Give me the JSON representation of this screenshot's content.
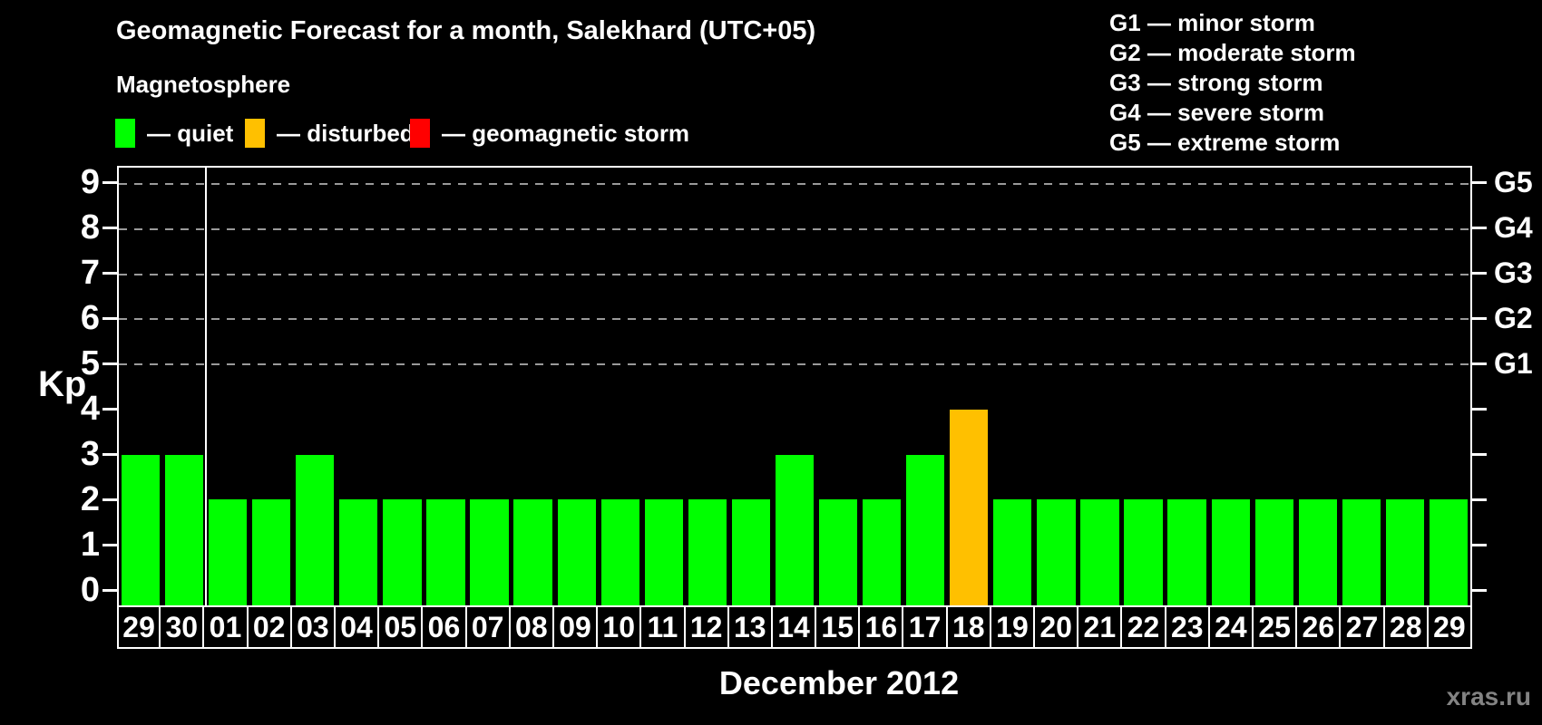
{
  "title": "Geomagnetic Forecast for a month, Salekhard (UTC+05)",
  "subtitle": "Magnetosphere",
  "legend": {
    "items": [
      {
        "key": "quiet",
        "label": "— quiet",
        "color": "#00ff00"
      },
      {
        "key": "disturbed",
        "label": "— disturbed",
        "color": "#ffc000"
      },
      {
        "key": "storm",
        "label": "— geomagnetic storm",
        "color": "#ff0000"
      }
    ]
  },
  "g_legend": [
    "G1 — minor storm",
    "G2 — moderate storm",
    "G3 — strong storm",
    "G4 — severe storm",
    "G5 — extreme storm"
  ],
  "watermark": "xras.ru",
  "chart_data": {
    "type": "bar",
    "title": "Geomagnetic Forecast for a month, Salekhard (UTC+05)",
    "xlabel": "December 2012",
    "ylabel": "Kp",
    "ylim": [
      -0.34,
      9.36
    ],
    "yticks": [
      0,
      1,
      2,
      3,
      4,
      5,
      6,
      7,
      8,
      9
    ],
    "gridline_values": [
      5,
      6,
      7,
      8,
      9
    ],
    "grid": "dashed horizontal at storm levels only",
    "right_axis_labels": [
      {
        "value": 5,
        "label": "G1"
      },
      {
        "value": 6,
        "label": "G2"
      },
      {
        "value": 7,
        "label": "G3"
      },
      {
        "value": 8,
        "label": "G4"
      },
      {
        "value": 9,
        "label": "G5"
      }
    ],
    "month_separator_after_index": 2,
    "categories": [
      "29",
      "30",
      "01",
      "02",
      "03",
      "04",
      "05",
      "06",
      "07",
      "08",
      "09",
      "10",
      "11",
      "12",
      "13",
      "14",
      "15",
      "16",
      "17",
      "18",
      "19",
      "20",
      "21",
      "22",
      "23",
      "24",
      "25",
      "26",
      "27",
      "28",
      "29"
    ],
    "series": [
      {
        "name": "Kp forecast",
        "values": [
          3,
          3,
          2,
          2,
          3,
          2,
          2,
          2,
          2,
          2,
          2,
          2,
          2,
          2,
          2,
          3,
          2,
          2,
          3,
          4,
          2,
          2,
          2,
          2,
          2,
          2,
          2,
          2,
          2,
          2,
          2
        ]
      }
    ],
    "bar_status": [
      "quiet",
      "quiet",
      "quiet",
      "quiet",
      "quiet",
      "quiet",
      "quiet",
      "quiet",
      "quiet",
      "quiet",
      "quiet",
      "quiet",
      "quiet",
      "quiet",
      "quiet",
      "quiet",
      "quiet",
      "quiet",
      "quiet",
      "disturbed",
      "quiet",
      "quiet",
      "quiet",
      "quiet",
      "quiet",
      "quiet",
      "quiet",
      "quiet",
      "quiet",
      "quiet",
      "quiet"
    ]
  }
}
